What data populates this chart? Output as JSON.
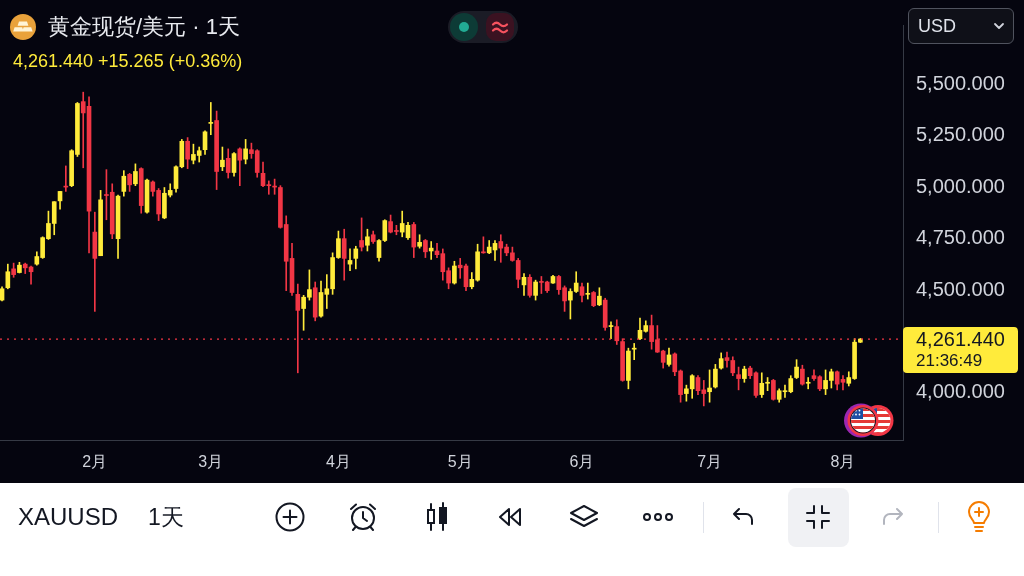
{
  "chart_data": {
    "type": "candlestick",
    "title": "黄金现货/美元 · 1天",
    "subtitle": "4,261.440 +15.265 (+0.36%)",
    "categories": [
      null,
      null,
      null,
      null,
      null,
      null,
      null,
      null,
      null,
      null,
      null,
      null,
      null,
      null,
      null,
      null,
      "2月",
      null,
      null,
      null,
      null,
      null,
      null,
      null,
      null,
      null,
      null,
      null,
      null,
      null,
      null,
      null,
      null,
      null,
      null,
      null,
      "3月",
      null,
      null,
      null,
      null,
      null,
      null,
      null,
      null,
      null,
      null,
      null,
      null,
      null,
      null,
      null,
      null,
      null,
      null,
      null,
      null,
      null,
      "4月",
      null,
      null,
      null,
      null,
      null,
      null,
      null,
      null,
      null,
      null,
      null,
      null,
      null,
      null,
      null,
      null,
      null,
      null,
      null,
      null,
      "5月",
      null,
      null,
      null,
      null,
      null,
      null,
      null,
      null,
      null,
      null,
      null,
      null,
      null,
      null,
      null,
      null,
      null,
      null,
      null,
      null,
      "6月",
      null,
      null,
      null,
      null,
      null,
      null,
      null,
      null,
      null,
      null,
      null,
      null,
      null,
      null,
      null,
      null,
      null,
      null,
      null,
      null,
      null,
      "7月",
      null,
      null,
      null,
      null,
      null,
      null,
      null,
      null,
      null,
      null,
      null,
      null,
      null,
      null,
      null,
      null,
      null,
      null,
      null,
      null,
      null,
      null,
      "8月",
      null,
      null,
      null
    ],
    "ohlc": [
      [
        4451,
        4516,
        4447,
        4506
      ],
      [
        4511,
        4626,
        4506,
        4589
      ],
      [
        4603,
        4631,
        4562,
        4575
      ],
      [
        4585,
        4635,
        4583,
        4621
      ],
      [
        4626,
        4631,
        4580,
        4608
      ],
      [
        4612,
        4617,
        4529,
        4589
      ],
      [
        4626,
        4686,
        4621,
        4663
      ],
      [
        4658,
        4759,
        4654,
        4755
      ],
      [
        4750,
        4884,
        4746,
        4824
      ],
      [
        4824,
        4930,
        4769,
        4930
      ],
      [
        4934,
        4980,
        4893,
        4980
      ],
      [
        5005,
        5104,
        4980,
        5001
      ],
      [
        5008,
        5183,
        5003,
        5178
      ],
      [
        5160,
        5413,
        5150,
        5408
      ],
      [
        5417,
        5463,
        5095,
        5362
      ],
      [
        5394,
        5440,
        4681,
        4884
      ],
      [
        4782,
        4879,
        4396,
        4654
      ],
      [
        4667,
        4985,
        4667,
        4939
      ],
      [
        4964,
        5086,
        4842,
        4960
      ],
      [
        4976,
        5017,
        4750,
        4773
      ],
      [
        4750,
        4962,
        4654,
        4957
      ],
      [
        4980,
        5081,
        4957,
        5054
      ],
      [
        5063,
        5068,
        4980,
        5012
      ],
      [
        5017,
        5114,
        5008,
        5077
      ],
      [
        5091,
        5095,
        4874,
        4911
      ],
      [
        4879,
        5040,
        4874,
        5035
      ],
      [
        5026,
        5031,
        4957,
        4980
      ],
      [
        4985,
        4994,
        4838,
        4870
      ],
      [
        4851,
        4999,
        4847,
        4971
      ],
      [
        4962,
        5017,
        4953,
        4985
      ],
      [
        4994,
        5104,
        4976,
        5100
      ],
      [
        5100,
        5233,
        5095,
        5224
      ],
      [
        5224,
        5242,
        5091,
        5137
      ],
      [
        5132,
        5210,
        5114,
        5160
      ],
      [
        5155,
        5196,
        5123,
        5178
      ],
      [
        5183,
        5275,
        5160,
        5270
      ],
      [
        5311,
        5413,
        5256,
        5316
      ],
      [
        5325,
        5371,
        4989,
        5077
      ],
      [
        5100,
        5196,
        5081,
        5132
      ],
      [
        5141,
        5187,
        5045,
        5072
      ],
      [
        5072,
        5169,
        5054,
        5164
      ],
      [
        5187,
        5192,
        5008,
        5132
      ],
      [
        5137,
        5233,
        5114,
        5187
      ],
      [
        5183,
        5215,
        5141,
        5164
      ],
      [
        5178,
        5183,
        5049,
        5072
      ],
      [
        5068,
        5123,
        5003,
        5008
      ],
      [
        5012,
        5031,
        4966,
        5008
      ],
      [
        5006,
        5040,
        4966,
        5001
      ],
      [
        4999,
        5008,
        4801,
        4805
      ],
      [
        4819,
        4861,
        4497,
        4640
      ],
      [
        4654,
        4727,
        4474,
        4488
      ],
      [
        4479,
        4529,
        4097,
        4401
      ],
      [
        4410,
        4474,
        4304,
        4465
      ],
      [
        4465,
        4598,
        4451,
        4502
      ],
      [
        4511,
        4539,
        4350,
        4368
      ],
      [
        4373,
        4543,
        4368,
        4488
      ],
      [
        4479,
        4575,
        4410,
        4506
      ],
      [
        4506,
        4681,
        4479,
        4658
      ],
      [
        4658,
        4787,
        4654,
        4750
      ],
      [
        4750,
        4796,
        4548,
        4654
      ],
      [
        4626,
        4700,
        4594,
        4644
      ],
      [
        4654,
        4713,
        4603,
        4700
      ],
      [
        4741,
        4851,
        4690,
        4709
      ],
      [
        4718,
        4796,
        4690,
        4759
      ],
      [
        4769,
        4787,
        4727,
        4736
      ],
      [
        4658,
        4746,
        4640,
        4741
      ],
      [
        4741,
        4842,
        4736,
        4838
      ],
      [
        4833,
        4865,
        4778,
        4782
      ],
      [
        4789,
        4815,
        4769,
        4785
      ],
      [
        4782,
        4884,
        4759,
        4824
      ],
      [
        4755,
        4829,
        4746,
        4815
      ],
      [
        4819,
        4829,
        4658,
        4709
      ],
      [
        4713,
        4769,
        4704,
        4732
      ],
      [
        4741,
        4746,
        4658,
        4686
      ],
      [
        4690,
        4736,
        4649,
        4704
      ],
      [
        4690,
        4727,
        4658,
        4672
      ],
      [
        4677,
        4700,
        4548,
        4589
      ],
      [
        4594,
        4608,
        4506,
        4534
      ],
      [
        4534,
        4640,
        4529,
        4617
      ],
      [
        4621,
        4654,
        4557,
        4608
      ],
      [
        4617,
        4626,
        4497,
        4516
      ],
      [
        4516,
        4585,
        4506,
        4552
      ],
      [
        4548,
        4723,
        4543,
        4686
      ],
      [
        4686,
        4759,
        4679,
        4681
      ],
      [
        4681,
        4741,
        4677,
        4709
      ],
      [
        4695,
        4741,
        4644,
        4727
      ],
      [
        4736,
        4769,
        4635,
        4704
      ],
      [
        4709,
        4723,
        4667,
        4681
      ],
      [
        4681,
        4709,
        4640,
        4644
      ],
      [
        4644,
        4654,
        4511,
        4552
      ],
      [
        4525,
        4580,
        4474,
        4562
      ],
      [
        4562,
        4575,
        4465,
        4474
      ],
      [
        4474,
        4548,
        4451,
        4539
      ],
      [
        4541,
        4566,
        4483,
        4537
      ],
      [
        4539,
        4543,
        4488,
        4497
      ],
      [
        4534,
        4571,
        4532,
        4566
      ],
      [
        4566,
        4571,
        4479,
        4502
      ],
      [
        4511,
        4520,
        4396,
        4447
      ],
      [
        4451,
        4506,
        4359,
        4493
      ],
      [
        4493,
        4589,
        4488,
        4534
      ],
      [
        4516,
        4534,
        4442,
        4474
      ],
      [
        4479,
        4534,
        4456,
        4483
      ],
      [
        4488,
        4493,
        4419,
        4424
      ],
      [
        4428,
        4511,
        4424,
        4470
      ],
      [
        4451,
        4460,
        4304,
        4318
      ],
      [
        4322,
        4345,
        4263,
        4327
      ],
      [
        4322,
        4355,
        4235,
        4253
      ],
      [
        4249,
        4263,
        4056,
        4060
      ],
      [
        4060,
        4217,
        4019,
        4203
      ],
      [
        4212,
        4240,
        4161,
        4217
      ],
      [
        4263,
        4364,
        4258,
        4304
      ],
      [
        4299,
        4350,
        4295,
        4327
      ],
      [
        4327,
        4378,
        4212,
        4249
      ],
      [
        4258,
        4327,
        4196,
        4198
      ],
      [
        4203,
        4207,
        4120,
        4148
      ],
      [
        4138,
        4217,
        4129,
        4184
      ],
      [
        4189,
        4194,
        4083,
        4102
      ],
      [
        4106,
        4111,
        3954,
        3991
      ],
      [
        3996,
        4037,
        3959,
        4019
      ],
      [
        4019,
        4088,
        3973,
        4083
      ],
      [
        4074,
        4083,
        3991,
        4010
      ],
      [
        4014,
        4060,
        3936,
        3996
      ],
      [
        4005,
        4111,
        3954,
        4023
      ],
      [
        4028,
        4138,
        4023,
        4115
      ],
      [
        4120,
        4194,
        4115,
        4166
      ],
      [
        4171,
        4198,
        4125,
        4157
      ],
      [
        4157,
        4175,
        4083,
        4097
      ],
      [
        4088,
        4125,
        4014,
        4069
      ],
      [
        4069,
        4129,
        4051,
        4115
      ],
      [
        4120,
        4129,
        4069,
        4083
      ],
      [
        4097,
        4102,
        3977,
        3987
      ],
      [
        3991,
        4097,
        3977,
        4046
      ],
      [
        4046,
        4074,
        4010,
        4051
      ],
      [
        4060,
        4065,
        3964,
        3968
      ],
      [
        3968,
        4019,
        3954,
        4010
      ],
      [
        4005,
        4037,
        3977,
        4010
      ],
      [
        4005,
        4083,
        4000,
        4069
      ],
      [
        4074,
        4161,
        4069,
        4125
      ],
      [
        4115,
        4134,
        4037,
        4042
      ],
      [
        4046,
        4074,
        4019,
        4051
      ],
      [
        4083,
        4111,
        4060,
        4069
      ],
      [
        4078,
        4083,
        4010,
        4019
      ],
      [
        4019,
        4111,
        3991,
        4060
      ],
      [
        4060,
        4115,
        4023,
        4102
      ],
      [
        4102,
        4106,
        4014,
        4042
      ],
      [
        4065,
        4083,
        4014,
        4051
      ],
      [
        4046,
        4102,
        4033,
        4074
      ],
      [
        4069,
        4263,
        4065,
        4246
      ],
      [
        4246,
        4264,
        4244,
        4261.44
      ]
    ],
    "colors": [
      "#ffeb3b",
      "#ffeb3b",
      "#f23645",
      "#ffeb3b",
      "#f23645",
      "#f23645",
      "#ffeb3b",
      "#ffeb3b",
      "#ffeb3b",
      "#ffeb3b",
      "#ffeb3b",
      "#f23645",
      "#ffeb3b",
      "#ffeb3b",
      "#f23645",
      "#f23645",
      "#f23645",
      "#ffeb3b",
      "#f23645",
      "#f23645",
      "#ffeb3b",
      "#ffeb3b",
      "#f23645",
      "#ffeb3b",
      "#f23645",
      "#ffeb3b",
      "#f23645",
      "#f23645",
      "#ffeb3b",
      "#ffeb3b",
      "#ffeb3b",
      "#ffeb3b",
      "#f23645",
      "#ffeb3b",
      "#ffeb3b",
      "#ffeb3b",
      "#ffeb3b",
      "#f23645",
      "#ffeb3b",
      "#f23645",
      "#ffeb3b",
      "#f23645",
      "#ffeb3b",
      "#f23645",
      "#f23645",
      "#f23645",
      "#f23645",
      "#f23645",
      "#f23645",
      "#f23645",
      "#f23645",
      "#f23645",
      "#ffeb3b",
      "#ffeb3b",
      "#f23645",
      "#ffeb3b",
      "#ffeb3b",
      "#ffeb3b",
      "#ffeb3b",
      "#f23645",
      "#ffeb3b",
      "#ffeb3b",
      "#f23645",
      "#ffeb3b",
      "#f23645",
      "#ffeb3b",
      "#ffeb3b",
      "#f23645",
      "#f23645",
      "#ffeb3b",
      "#ffeb3b",
      "#f23645",
      "#ffeb3b",
      "#f23645",
      "#ffeb3b",
      "#f23645",
      "#f23645",
      "#f23645",
      "#ffeb3b",
      "#f23645",
      "#f23645",
      "#ffeb3b",
      "#ffeb3b",
      "#f23645",
      "#ffeb3b",
      "#ffeb3b",
      "#f23645",
      "#f23645",
      "#f23645",
      "#f23645",
      "#ffeb3b",
      "#f23645",
      "#ffeb3b",
      "#f23645",
      "#f23645",
      "#ffeb3b",
      "#f23645",
      "#f23645",
      "#ffeb3b",
      "#ffeb3b",
      "#f23645",
      "#ffeb3b",
      "#f23645",
      "#ffeb3b",
      "#f23645",
      "#ffeb3b",
      "#f23645",
      "#f23645",
      "#ffeb3b",
      "#ffeb3b",
      "#ffeb3b",
      "#ffeb3b",
      "#f23645",
      "#f23645",
      "#f23645",
      "#ffeb3b",
      "#f23645",
      "#f23645",
      "#ffeb3b",
      "#ffeb3b",
      "#f23645",
      "#f23645",
      "#ffeb3b",
      "#ffeb3b",
      "#ffeb3b",
      "#f23645",
      "#f23645",
      "#f23645",
      "#ffeb3b",
      "#f23645",
      "#f23645",
      "#ffeb3b",
      "#ffeb3b",
      "#f23645",
      "#ffeb3b",
      "#ffeb3b",
      "#ffeb3b",
      "#ffeb3b",
      "#f23645",
      "#ffeb3b",
      "#f23645",
      "#f23645",
      "#ffeb3b",
      "#ffeb3b",
      "#f23645",
      "#f23645",
      "#ffeb3b",
      "#ffeb3b",
      "#ffeb3b"
    ],
    "ylim": [
      3770,
      5790
    ],
    "yticks": [
      {
        "value": 4000,
        "label": "4,000.000"
      },
      {
        "value": 4500,
        "label": "4,500.000"
      },
      {
        "value": 4750,
        "label": "4,750.000"
      },
      {
        "value": 5000,
        "label": "5,000.000"
      },
      {
        "value": 5250,
        "label": "5,250.000"
      },
      {
        "value": 5500,
        "label": "5,500.000"
      }
    ],
    "ref_lines": [
      {
        "axis": "y",
        "value": 4261.44,
        "label": "4,261.440",
        "color": "#f23645",
        "line_style": "dotted"
      }
    ],
    "annotations": [
      "21:36:49",
      "USD",
      "XAUUSD",
      "1天"
    ]
  }
}
